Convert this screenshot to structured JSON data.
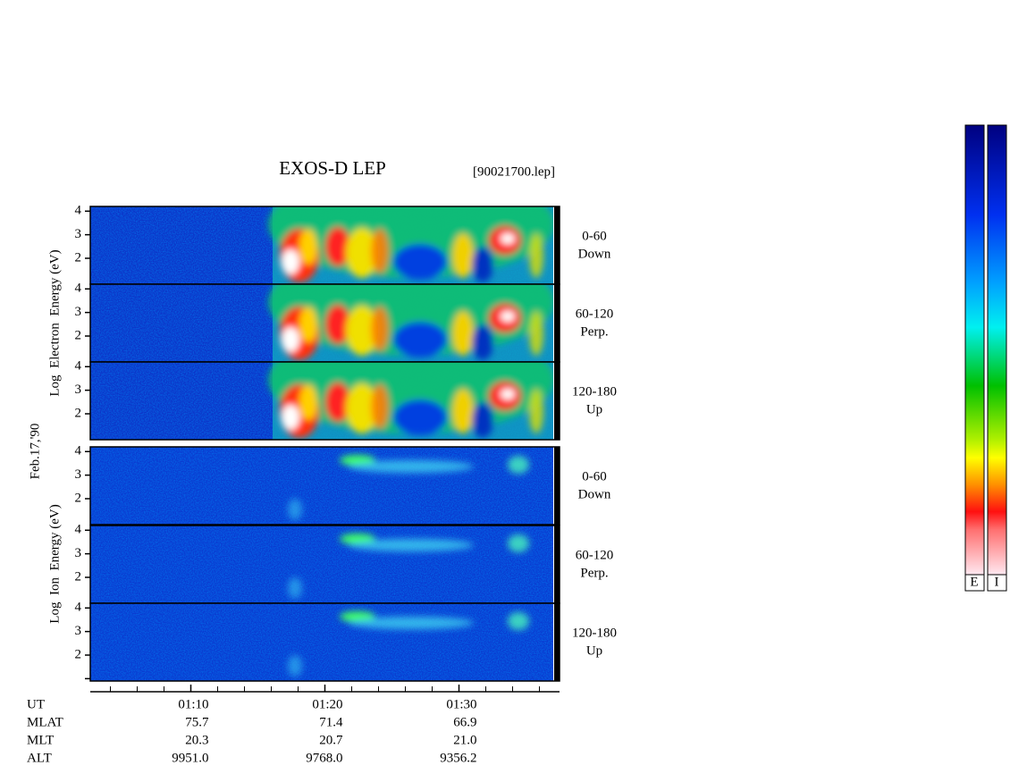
{
  "chart_data": {
    "type": "spectrogram",
    "title": "EXOS-D LEP",
    "file": "[90021700.lep]",
    "date": "Feb.17,'90",
    "xlim": [
      2.5,
      37.5
    ],
    "xticks": [
      {
        "value": 10,
        "label": "01:10"
      },
      {
        "value": 20,
        "label": "01:20"
      },
      {
        "value": 30,
        "label": "01:30"
      }
    ],
    "minor_xticks": [
      4,
      6,
      8,
      12,
      14,
      16,
      18,
      22,
      24,
      26,
      28,
      32,
      34,
      36
    ],
    "groups": [
      {
        "ylabel": "Log  Electron  Energy (eV)",
        "panels": [
          {
            "angle": "0-60",
            "direction": "Down",
            "ylim": [
              0.9,
              4.2
            ],
            "yticks": [
              2,
              3,
              4
            ]
          },
          {
            "angle": "60-120",
            "direction": "Perp.",
            "ylim": [
              0.9,
              4.2
            ],
            "yticks": [
              2,
              3,
              4
            ]
          },
          {
            "angle": "120-180",
            "direction": "Up",
            "ylim": [
              0.9,
              4.2
            ],
            "yticks": [
              2,
              3,
              4
            ]
          }
        ]
      },
      {
        "ylabel": "Log  Ion  Energy (eV)",
        "panels": [
          {
            "angle": "0-60",
            "direction": "Down",
            "ylim": [
              0.9,
              4.2
            ],
            "yticks": [
              2,
              3,
              4
            ]
          },
          {
            "angle": "60-120",
            "direction": "Perp.",
            "ylim": [
              0.9,
              4.2
            ],
            "yticks": [
              2,
              3,
              4
            ]
          },
          {
            "angle": "120-180",
            "direction": "Up",
            "ylim": [
              0.9,
              4.2
            ],
            "yticks": [
              1,
              2,
              3,
              4
            ]
          }
        ]
      }
    ],
    "orbit": [
      {
        "label": "UT"
      },
      {
        "label": "MLAT",
        "values": [
          "75.7",
          "71.4",
          "66.9"
        ]
      },
      {
        "label": "MLT",
        "values": [
          "20.3",
          "20.7",
          "21.0"
        ]
      },
      {
        "label": "ALT",
        "values": [
          "9951.0",
          "9768.0",
          "9356.2"
        ]
      }
    ],
    "colorbar_labels": [
      "E",
      "I"
    ]
  }
}
